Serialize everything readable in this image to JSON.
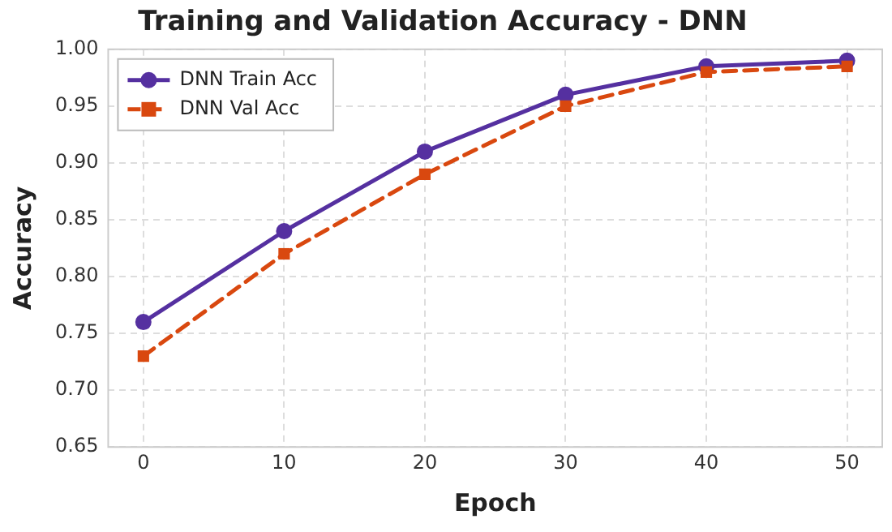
{
  "chart_data": {
    "type": "line",
    "title": "Training and Validation Accuracy - DNN",
    "xlabel": "Epoch",
    "ylabel": "Accuracy",
    "x": [
      0,
      10,
      20,
      30,
      40,
      50
    ],
    "series": [
      {
        "name": "DNN Train Acc",
        "color": "#5530a0",
        "values": [
          0.76,
          0.84,
          0.91,
          0.96,
          0.985,
          0.99
        ],
        "marker": "circle",
        "line_style": "solid"
      },
      {
        "name": "DNN Val Acc",
        "color": "#d9480f",
        "values": [
          0.73,
          0.82,
          0.89,
          0.95,
          0.98,
          0.985
        ],
        "marker": "square",
        "line_style": "dashed"
      }
    ],
    "xlim": [
      -2.5,
      52.5
    ],
    "xticks": [
      0,
      10,
      20,
      30,
      40,
      50
    ],
    "ylim": [
      0.65,
      1.0
    ],
    "yticks": [
      0.65,
      {
        "value": 0.7,
        "label": "0.70"
      },
      0.75,
      {
        "value": 0.8,
        "label": "0.80"
      },
      0.85,
      {
        "value": 0.9,
        "label": "0.90"
      },
      0.95,
      {
        "value": 1.0,
        "label": "1.00"
      }
    ],
    "grid": true,
    "legend": "top left"
  }
}
